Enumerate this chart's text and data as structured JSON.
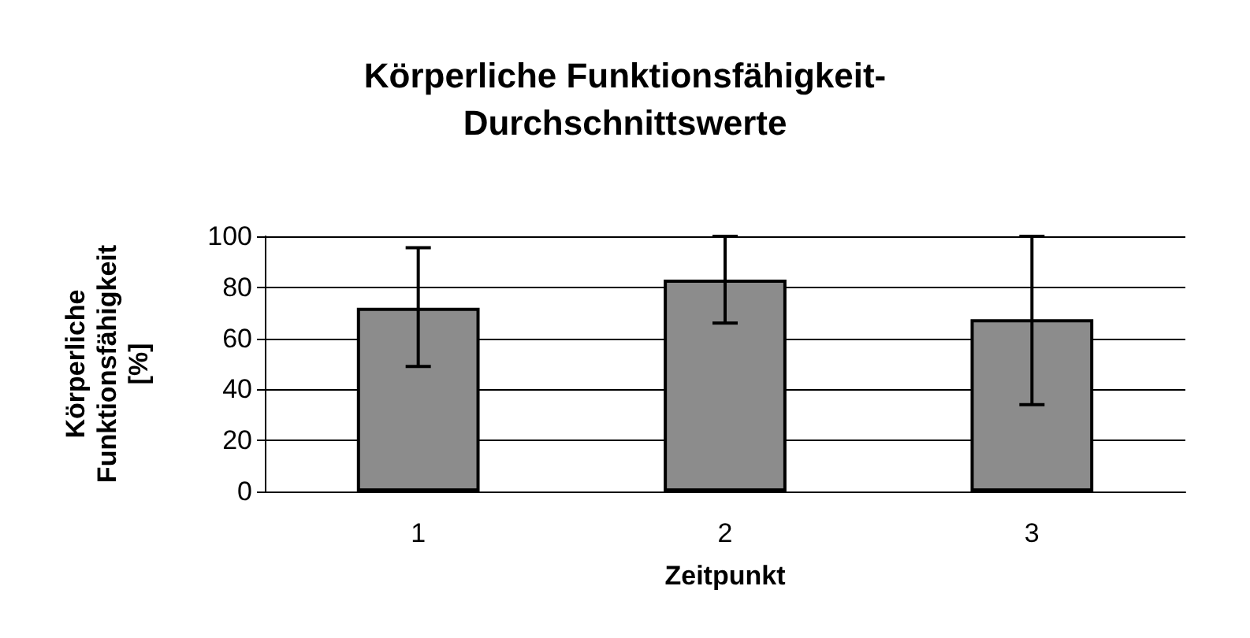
{
  "chart_data": {
    "type": "bar",
    "title": "Körperliche Funktionsfähigkeit-\nDurchschnittswerte",
    "xlabel": "Zeitpunkt",
    "ylabel": "Körperliche\nFunktionsfähigkeit\n[%]",
    "categories": [
      "1",
      "2",
      "3"
    ],
    "values": [
      72,
      83,
      67.5
    ],
    "errors": [
      [
        49,
        95.5
      ],
      [
        66,
        100
      ],
      [
        34,
        100
      ]
    ],
    "color": "#8c8c8c",
    "ylim": [
      0,
      100
    ],
    "yticks": [
      0,
      20,
      40,
      60,
      80,
      100
    ],
    "grid": "y"
  }
}
